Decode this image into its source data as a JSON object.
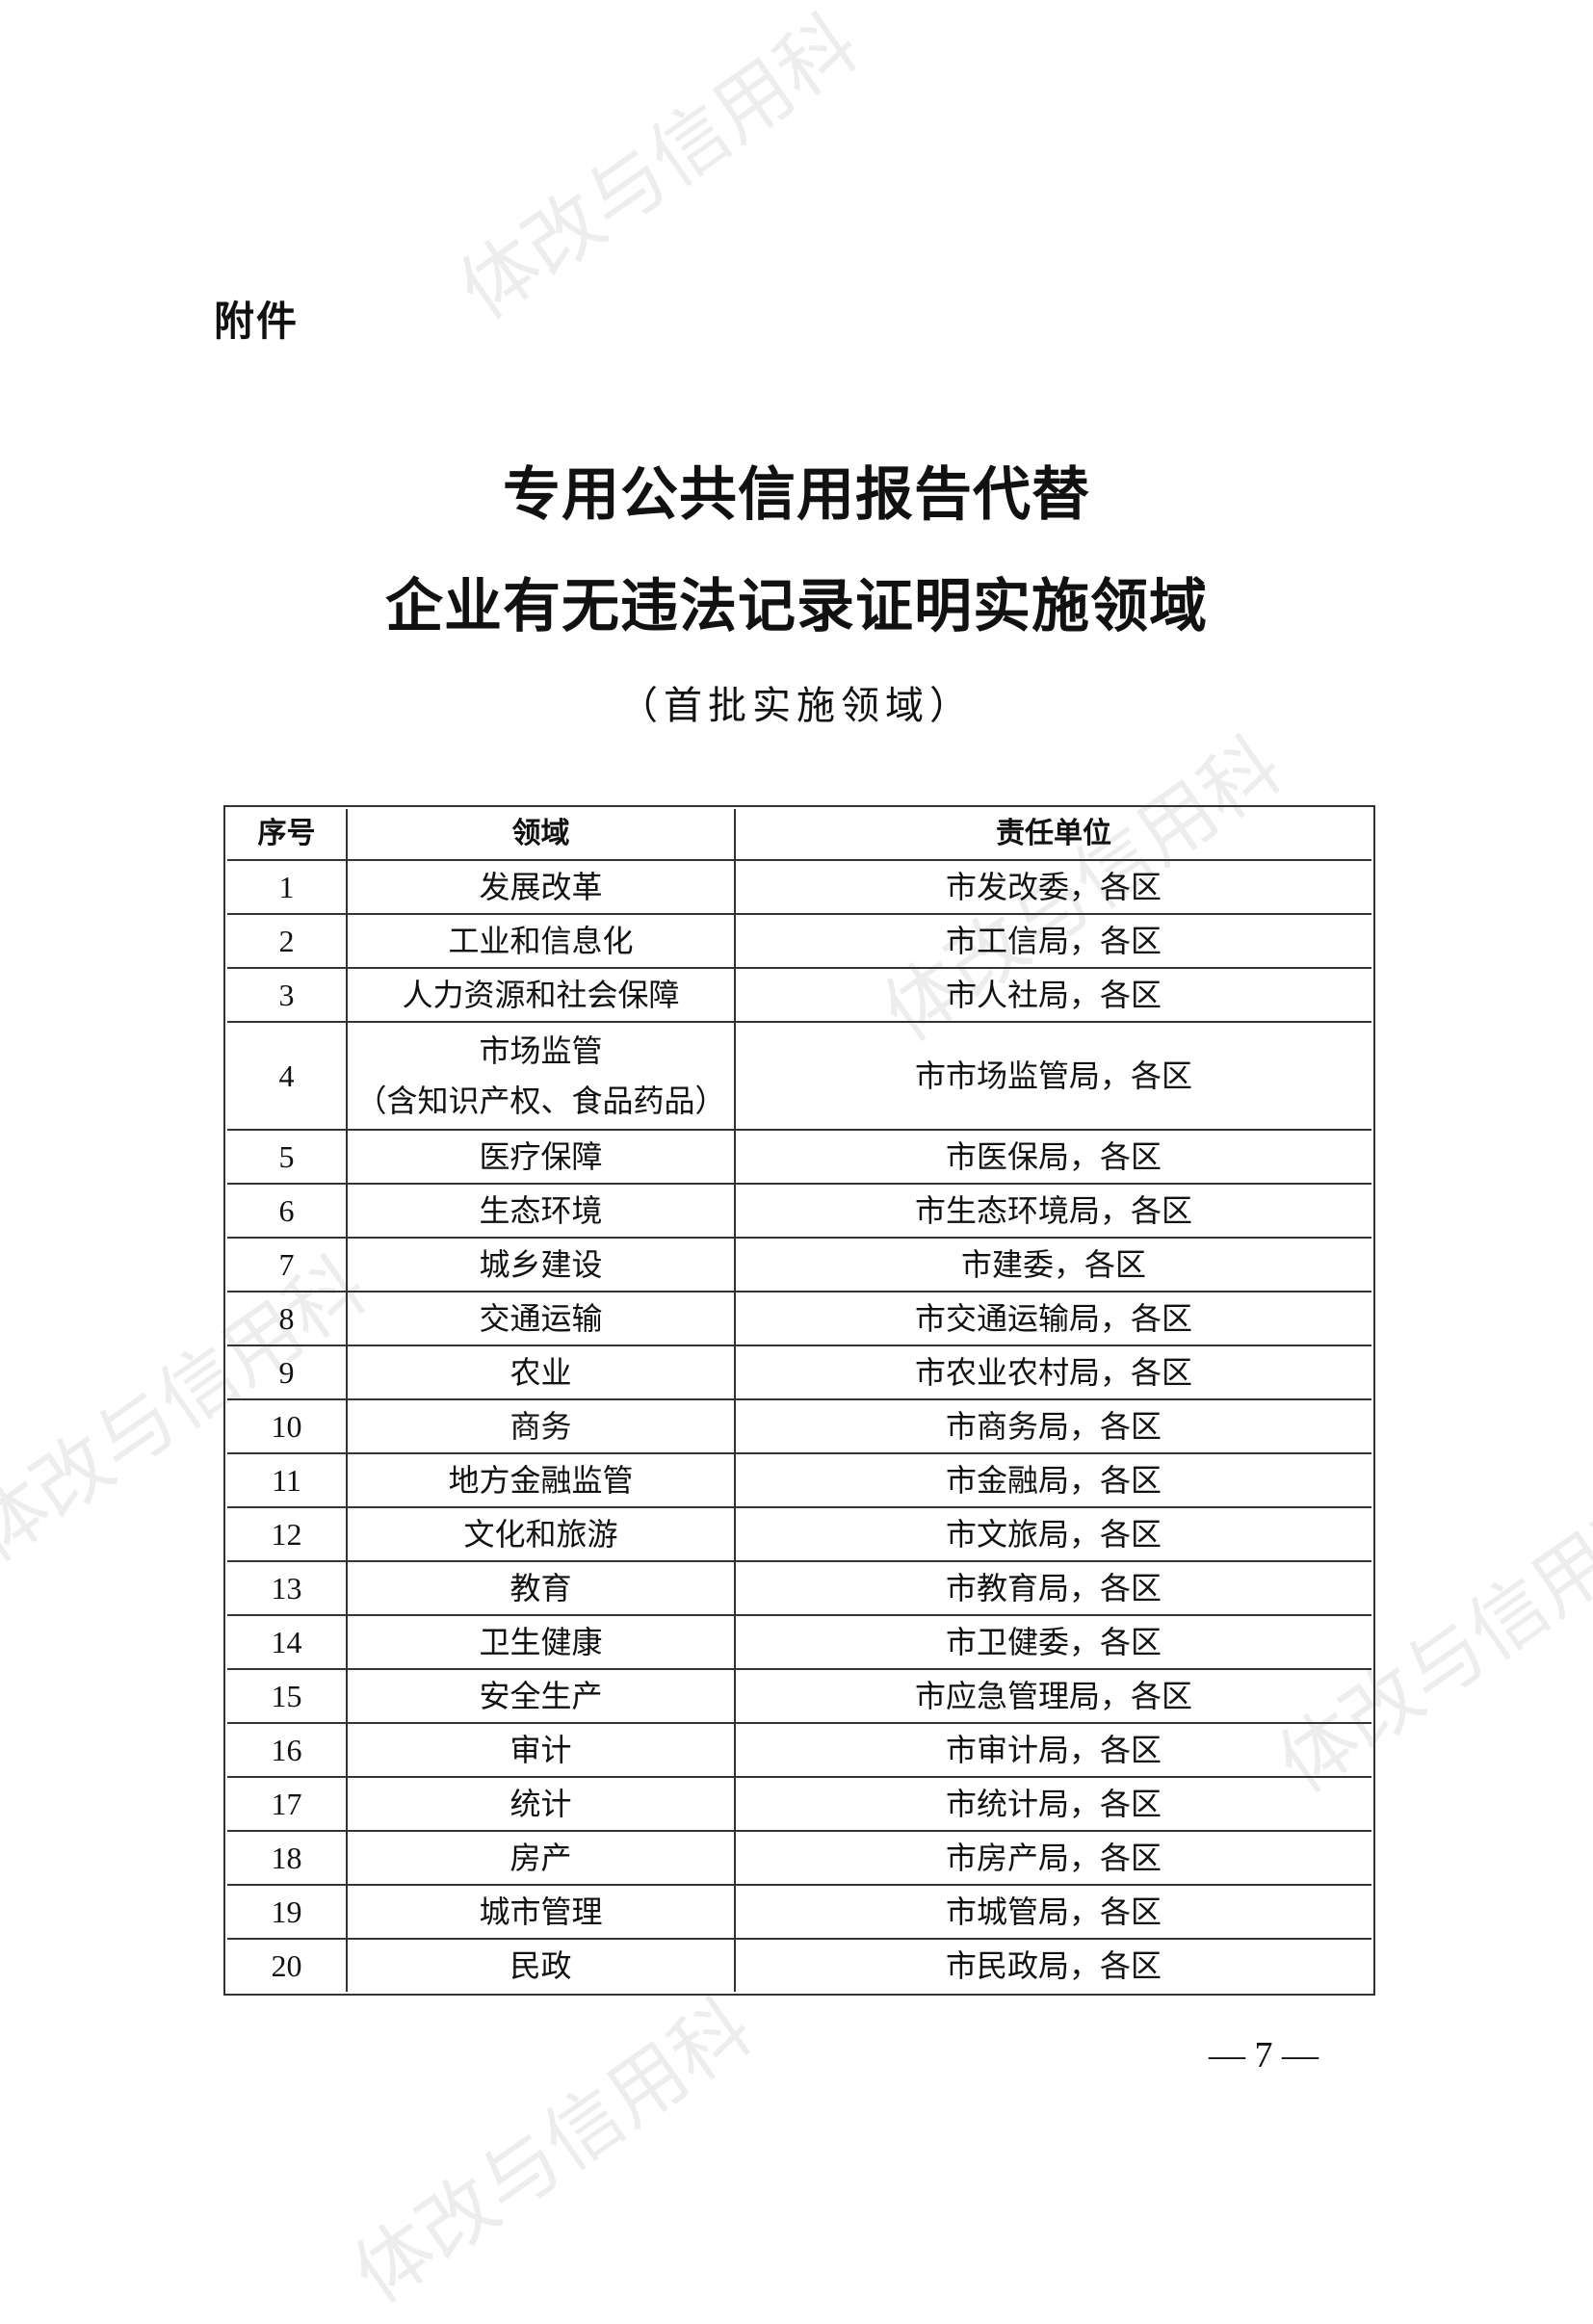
{
  "watermark": "体改与信用科",
  "attachment_label": "附件",
  "title_line1": "专用公共信用报告代替",
  "title_line2": "企业有无违法记录证明实施领域",
  "subtitle": "（首批实施领域）",
  "table": {
    "headers": [
      "序号",
      "领域",
      "责任单位"
    ],
    "rows": [
      {
        "no": "1",
        "field": "发展改革",
        "unit": "市发改委，各区"
      },
      {
        "no": "2",
        "field": "工业和信息化",
        "unit": "市工信局，各区"
      },
      {
        "no": "3",
        "field": "人力资源和社会保障",
        "unit": "市人社局，各区"
      },
      {
        "no": "4",
        "field": "市场监管",
        "field_note": "（含知识产权、食品药品）",
        "unit": "市市场监管局，各区"
      },
      {
        "no": "5",
        "field": "医疗保障",
        "unit": "市医保局，各区"
      },
      {
        "no": "6",
        "field": "生态环境",
        "unit": "市生态环境局，各区"
      },
      {
        "no": "7",
        "field": "城乡建设",
        "unit": "市建委，各区"
      },
      {
        "no": "8",
        "field": "交通运输",
        "unit": "市交通运输局，各区"
      },
      {
        "no": "9",
        "field": "农业",
        "unit": "市农业农村局，各区"
      },
      {
        "no": "10",
        "field": "商务",
        "unit": "市商务局，各区"
      },
      {
        "no": "11",
        "field": "地方金融监管",
        "unit": "市金融局，各区"
      },
      {
        "no": "12",
        "field": "文化和旅游",
        "unit": "市文旅局，各区"
      },
      {
        "no": "13",
        "field": "教育",
        "unit": "市教育局，各区"
      },
      {
        "no": "14",
        "field": "卫生健康",
        "unit": "市卫健委，各区"
      },
      {
        "no": "15",
        "field": "安全生产",
        "unit": "市应急管理局，各区"
      },
      {
        "no": "16",
        "field": "审计",
        "unit": "市审计局，各区"
      },
      {
        "no": "17",
        "field": "统计",
        "unit": "市统计局，各区"
      },
      {
        "no": "18",
        "field": "房产",
        "unit": "市房产局，各区"
      },
      {
        "no": "19",
        "field": "城市管理",
        "unit": "市城管局，各区"
      },
      {
        "no": "20",
        "field": "民政",
        "unit": "市民政局，各区"
      }
    ]
  },
  "page_number": "— 7 —"
}
